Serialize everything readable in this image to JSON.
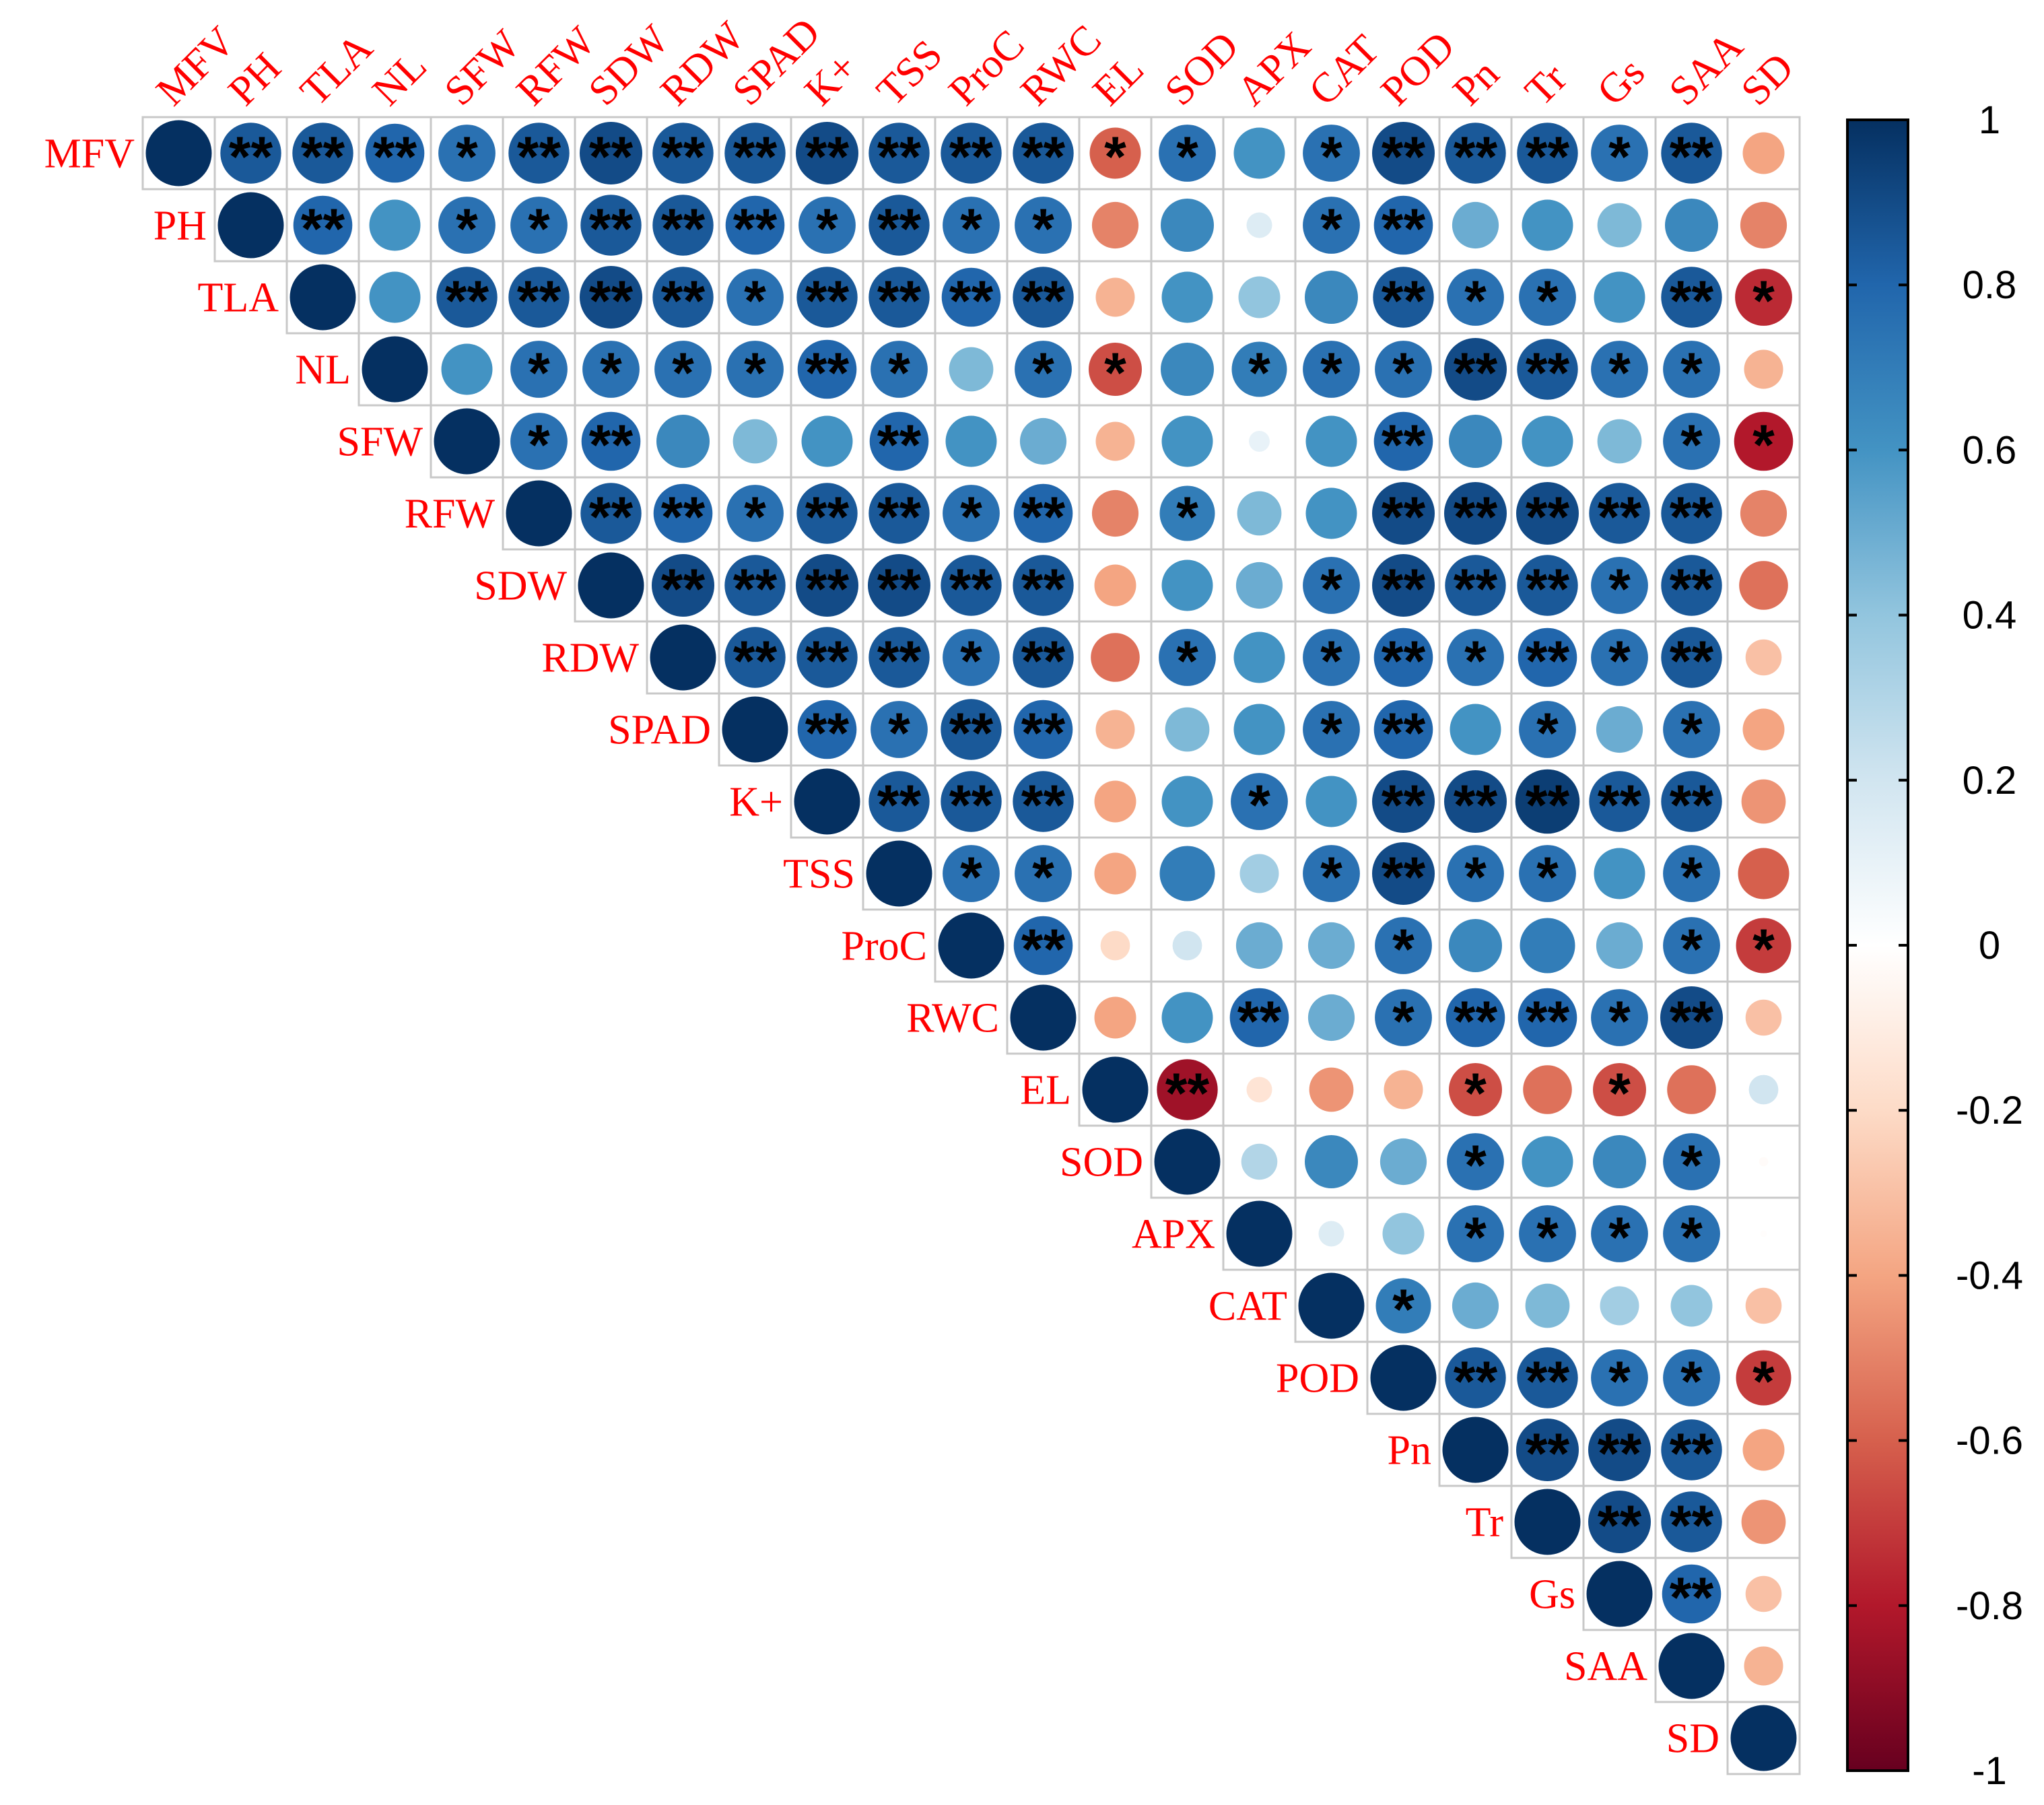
{
  "chart_data": {
    "type": "heatmap",
    "subtype": "correlation-matrix-upper-circles",
    "variables": [
      "MFV",
      "PH",
      "TLA",
      "NL",
      "SFW",
      "RFW",
      "SDW",
      "RDW",
      "SPAD",
      "K+",
      "TSS",
      "ProC",
      "RWC",
      "EL",
      "SOD",
      "APX",
      "CAT",
      "POD",
      "Pn",
      "Tr",
      "Gs",
      "SAA",
      "SD"
    ],
    "value_range": [
      -1,
      1
    ],
    "colorbar_ticks": [
      "1",
      "0.8",
      "0.6",
      "0.4",
      "0.2",
      "0",
      "-0.2",
      "-0.4",
      "-0.6",
      "-0.8",
      "-1"
    ],
    "colorbar_tick_values": [
      1,
      0.8,
      0.6,
      0.4,
      0.2,
      0,
      -0.2,
      -0.4,
      -0.6,
      -0.8,
      -1
    ],
    "label_color": "#ff0000",
    "colorscale": [
      "#67001f",
      "#b2182b",
      "#d6604d",
      "#f4a582",
      "#fddbc7",
      "#ffffff",
      "#d1e5f0",
      "#92c5de",
      "#4393c3",
      "#2166ac",
      "#053061"
    ],
    "matrix": [
      [
        1,
        0.85,
        0.85,
        0.8,
        0.75,
        0.85,
        0.9,
        0.85,
        0.85,
        0.9,
        0.85,
        0.85,
        0.85,
        -0.6,
        0.75,
        0.6,
        0.75,
        0.9,
        0.85,
        0.85,
        0.75,
        0.85,
        -0.4
      ],
      [
        null,
        1,
        0.8,
        0.6,
        0.75,
        0.75,
        0.85,
        0.85,
        0.8,
        0.75,
        0.85,
        0.75,
        0.75,
        -0.5,
        0.65,
        0.15,
        0.75,
        0.8,
        0.5,
        0.6,
        0.45,
        0.65,
        -0.5
      ],
      [
        null,
        null,
        1,
        0.6,
        0.85,
        0.85,
        0.9,
        0.85,
        0.75,
        0.85,
        0.85,
        0.8,
        0.85,
        -0.35,
        0.6,
        0.4,
        0.65,
        0.85,
        0.75,
        0.75,
        0.6,
        0.85,
        -0.75
      ],
      [
        null,
        null,
        null,
        1,
        0.6,
        0.75,
        0.75,
        0.75,
        0.75,
        0.8,
        0.75,
        0.45,
        0.75,
        -0.65,
        0.65,
        0.7,
        0.75,
        0.75,
        0.9,
        0.85,
        0.75,
        0.75,
        -0.35
      ],
      [
        null,
        null,
        null,
        null,
        1,
        0.75,
        0.8,
        0.65,
        0.45,
        0.6,
        0.8,
        0.6,
        0.5,
        -0.35,
        0.6,
        0.1,
        0.6,
        0.8,
        0.65,
        0.6,
        0.45,
        0.75,
        -0.8
      ],
      [
        null,
        null,
        null,
        null,
        null,
        1,
        0.85,
        0.8,
        0.75,
        0.85,
        0.85,
        0.75,
        0.8,
        -0.5,
        0.7,
        0.45,
        0.6,
        0.9,
        0.9,
        0.9,
        0.85,
        0.85,
        -0.5
      ],
      [
        null,
        null,
        null,
        null,
        null,
        null,
        1,
        0.9,
        0.85,
        0.9,
        0.9,
        0.85,
        0.85,
        -0.4,
        0.6,
        0.5,
        0.75,
        0.9,
        0.85,
        0.85,
        0.75,
        0.85,
        -0.55
      ],
      [
        null,
        null,
        null,
        null,
        null,
        null,
        null,
        1,
        0.85,
        0.85,
        0.85,
        0.75,
        0.85,
        -0.55,
        0.75,
        0.6,
        0.75,
        0.8,
        0.75,
        0.8,
        0.75,
        0.85,
        -0.3
      ],
      [
        null,
        null,
        null,
        null,
        null,
        null,
        null,
        null,
        1,
        0.8,
        0.75,
        0.85,
        0.8,
        -0.35,
        0.45,
        0.6,
        0.75,
        0.8,
        0.6,
        0.75,
        0.5,
        0.75,
        -0.4
      ],
      [
        null,
        null,
        null,
        null,
        null,
        null,
        null,
        null,
        null,
        1,
        0.85,
        0.85,
        0.85,
        -0.4,
        0.6,
        0.75,
        0.6,
        0.9,
        0.9,
        0.95,
        0.85,
        0.85,
        -0.45
      ],
      [
        null,
        null,
        null,
        null,
        null,
        null,
        null,
        null,
        null,
        null,
        1,
        0.75,
        0.75,
        -0.4,
        0.7,
        0.35,
        0.75,
        0.9,
        0.75,
        0.75,
        0.6,
        0.75,
        -0.6
      ],
      [
        null,
        null,
        null,
        null,
        null,
        null,
        null,
        null,
        null,
        null,
        null,
        1,
        0.8,
        -0.2,
        0.2,
        0.5,
        0.5,
        0.75,
        0.65,
        0.7,
        0.5,
        0.75,
        -0.7
      ],
      [
        null,
        null,
        null,
        null,
        null,
        null,
        null,
        null,
        null,
        null,
        null,
        null,
        1,
        -0.4,
        0.6,
        0.8,
        0.5,
        0.75,
        0.8,
        0.8,
        0.75,
        0.9,
        -0.3
      ],
      [
        null,
        null,
        null,
        null,
        null,
        null,
        null,
        null,
        null,
        null,
        null,
        null,
        null,
        1,
        -0.85,
        -0.15,
        -0.45,
        -0.35,
        -0.65,
        -0.55,
        -0.65,
        -0.55,
        0.2
      ],
      [
        null,
        null,
        null,
        null,
        null,
        null,
        null,
        null,
        null,
        null,
        null,
        null,
        null,
        null,
        1,
        0.3,
        0.65,
        0.5,
        0.75,
        0.6,
        0.65,
        0.75,
        -0.02
      ],
      [
        null,
        null,
        null,
        null,
        null,
        null,
        null,
        null,
        null,
        null,
        null,
        null,
        null,
        null,
        null,
        1,
        0.15,
        0.4,
        0.75,
        0.75,
        0.75,
        0.75,
        -0.01
      ],
      [
        null,
        null,
        null,
        null,
        null,
        null,
        null,
        null,
        null,
        null,
        null,
        null,
        null,
        null,
        null,
        null,
        1,
        0.7,
        0.5,
        0.45,
        0.35,
        0.4,
        -0.3
      ],
      [
        null,
        null,
        null,
        null,
        null,
        null,
        null,
        null,
        null,
        null,
        null,
        null,
        null,
        null,
        null,
        null,
        null,
        1,
        0.85,
        0.85,
        0.75,
        0.75,
        -0.7
      ],
      [
        null,
        null,
        null,
        null,
        null,
        null,
        null,
        null,
        null,
        null,
        null,
        null,
        null,
        null,
        null,
        null,
        null,
        null,
        1,
        0.9,
        0.9,
        0.85,
        -0.4
      ],
      [
        null,
        null,
        null,
        null,
        null,
        null,
        null,
        null,
        null,
        null,
        null,
        null,
        null,
        null,
        null,
        null,
        null,
        null,
        null,
        1,
        0.9,
        0.85,
        -0.45
      ],
      [
        null,
        null,
        null,
        null,
        null,
        null,
        null,
        null,
        null,
        null,
        null,
        null,
        null,
        null,
        null,
        null,
        null,
        null,
        null,
        null,
        1,
        0.8,
        -0.3
      ],
      [
        null,
        null,
        null,
        null,
        null,
        null,
        null,
        null,
        null,
        null,
        null,
        null,
        null,
        null,
        null,
        null,
        null,
        null,
        null,
        null,
        null,
        1,
        -0.35
      ],
      [
        null,
        null,
        null,
        null,
        null,
        null,
        null,
        null,
        null,
        null,
        null,
        null,
        null,
        null,
        null,
        null,
        null,
        null,
        null,
        null,
        null,
        null,
        1
      ]
    ],
    "significance": [
      [
        "",
        "**",
        "**",
        "**",
        "*",
        "**",
        "**",
        "**",
        "**",
        "**",
        "**",
        "**",
        "**",
        "*",
        "*",
        "",
        "*",
        "**",
        "**",
        "**",
        "*",
        "**",
        ""
      ],
      [
        "",
        "",
        "**",
        "",
        "*",
        "*",
        "**",
        "**",
        "**",
        "*",
        "**",
        "*",
        "*",
        "",
        "",
        "",
        "*",
        "**",
        "",
        "",
        "",
        "",
        ""
      ],
      [
        "",
        "",
        "",
        "",
        "**",
        "**",
        "**",
        "**",
        "*",
        "**",
        "**",
        "**",
        "**",
        "",
        "",
        "",
        "",
        "**",
        "*",
        "*",
        "",
        "**",
        "*"
      ],
      [
        "",
        "",
        "",
        "",
        "",
        "*",
        "*",
        "*",
        "*",
        "**",
        "*",
        "",
        "*",
        "*",
        "",
        "*",
        "*",
        "*",
        "**",
        "**",
        "*",
        "*",
        ""
      ],
      [
        "",
        "",
        "",
        "",
        "",
        "*",
        "**",
        "",
        "",
        "",
        "**",
        "",
        "",
        "",
        "",
        "",
        "",
        "**",
        "",
        "",
        "",
        "*",
        "*"
      ],
      [
        "",
        "",
        "",
        "",
        "",
        "",
        "**",
        "**",
        "*",
        "**",
        "**",
        "*",
        "**",
        "",
        "*",
        "",
        "",
        "**",
        "**",
        "**",
        "**",
        "**",
        ""
      ],
      [
        "",
        "",
        "",
        "",
        "",
        "",
        "",
        "**",
        "**",
        "**",
        "**",
        "**",
        "**",
        "",
        "",
        "",
        "*",
        "**",
        "**",
        "**",
        "*",
        "**",
        ""
      ],
      [
        "",
        "",
        "",
        "",
        "",
        "",
        "",
        "",
        "**",
        "**",
        "**",
        "*",
        "**",
        "",
        "*",
        "",
        "*",
        "**",
        "*",
        "**",
        "*",
        "**",
        ""
      ],
      [
        "",
        "",
        "",
        "",
        "",
        "",
        "",
        "",
        "",
        "**",
        "*",
        "**",
        "**",
        "",
        "",
        "",
        "*",
        "**",
        "",
        "*",
        "",
        "*",
        ""
      ],
      [
        "",
        "",
        "",
        "",
        "",
        "",
        "",
        "",
        "",
        "",
        "**",
        "**",
        "**",
        "",
        "",
        "*",
        "",
        "**",
        "**",
        "**",
        "**",
        "**",
        ""
      ],
      [
        "",
        "",
        "",
        "",
        "",
        "",
        "",
        "",
        "",
        "",
        "",
        "*",
        "*",
        "",
        "",
        "",
        "*",
        "**",
        "*",
        "*",
        "",
        "*",
        ""
      ],
      [
        "",
        "",
        "",
        "",
        "",
        "",
        "",
        "",
        "",
        "",
        "",
        "",
        "**",
        "",
        "",
        "",
        "",
        "*",
        "",
        "",
        "",
        "*",
        "*"
      ],
      [
        "",
        "",
        "",
        "",
        "",
        "",
        "",
        "",
        "",
        "",
        "",
        "",
        "",
        "",
        "",
        "**",
        "",
        "*",
        "**",
        "**",
        "*",
        "**",
        ""
      ],
      [
        "",
        "",
        "",
        "",
        "",
        "",
        "",
        "",
        "",
        "",
        "",
        "",
        "",
        "",
        "**",
        "",
        "",
        "",
        "*",
        "",
        "*",
        "",
        ""
      ],
      [
        "",
        "",
        "",
        "",
        "",
        "",
        "",
        "",
        "",
        "",
        "",
        "",
        "",
        "",
        "",
        "",
        "",
        "",
        "*",
        "",
        "",
        "*",
        ""
      ],
      [
        "",
        "",
        "",
        "",
        "",
        "",
        "",
        "",
        "",
        "",
        "",
        "",
        "",
        "",
        "",
        "",
        "",
        "",
        "*",
        "*",
        "*",
        "*",
        ""
      ],
      [
        "",
        "",
        "",
        "",
        "",
        "",
        "",
        "",
        "",
        "",
        "",
        "",
        "",
        "",
        "",
        "",
        "",
        "*",
        "",
        "",
        "",
        "",
        ""
      ],
      [
        "",
        "",
        "",
        "",
        "",
        "",
        "",
        "",
        "",
        "",
        "",
        "",
        "",
        "",
        "",
        "",
        "",
        "",
        "**",
        "**",
        "*",
        "*",
        "*"
      ],
      [
        "",
        "",
        "",
        "",
        "",
        "",
        "",
        "",
        "",
        "",
        "",
        "",
        "",
        "",
        "",
        "",
        "",
        "",
        "",
        "**",
        "**",
        "**",
        ""
      ],
      [
        "",
        "",
        "",
        "",
        "",
        "",
        "",
        "",
        "",
        "",
        "",
        "",
        "",
        "",
        "",
        "",
        "",
        "",
        "",
        "",
        "**",
        "**",
        ""
      ],
      [
        "",
        "",
        "",
        "",
        "",
        "",
        "",
        "",
        "",
        "",
        "",
        "",
        "",
        "",
        "",
        "",
        "",
        "",
        "",
        "",
        "",
        "**",
        ""
      ],
      [
        "",
        "",
        "",
        "",
        "",
        "",
        "",
        "",
        "",
        "",
        "",
        "",
        "",
        "",
        "",
        "",
        "",
        "",
        "",
        "",
        "",
        "",
        ""
      ],
      [
        "",
        "",
        "",
        "",
        "",
        "",
        "",
        "",
        "",
        "",
        "",
        "",
        "",
        "",
        "",
        "",
        "",
        "",
        "",
        "",
        "",
        "",
        ""
      ]
    ]
  }
}
